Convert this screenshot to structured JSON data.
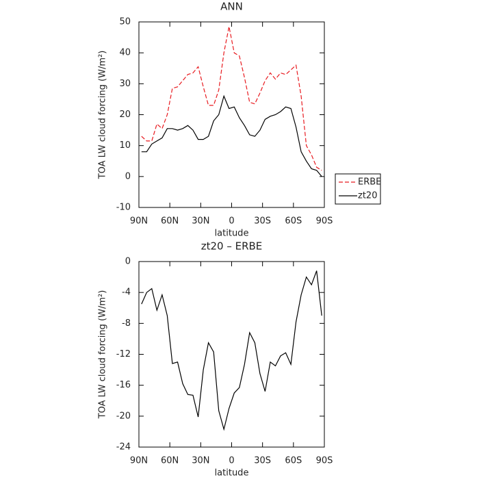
{
  "chart_data": [
    {
      "type": "line",
      "title": "ANN",
      "xlabel": "latitude",
      "ylabel": "TOA LW cloud forcing (W/m²)",
      "x": [
        87.5,
        82.5,
        77.5,
        72.5,
        67.5,
        62.5,
        57.5,
        52.5,
        47.5,
        42.5,
        37.5,
        32.5,
        27.5,
        22.5,
        17.5,
        12.5,
        7.5,
        2.5,
        -2.5,
        -7.5,
        -12.5,
        -17.5,
        -22.5,
        -27.5,
        -32.5,
        -37.5,
        -42.5,
        -47.5,
        -52.5,
        -57.5,
        -62.5,
        -67.5,
        -72.5,
        -77.5,
        -82.5,
        -87.5
      ],
      "series": [
        {
          "name": "ERBE",
          "color": "#e8191e",
          "dashed": true,
          "values": [
            13,
            11.5,
            11.5,
            17,
            15.5,
            20,
            28.5,
            29,
            31,
            33,
            33.5,
            35.5,
            29,
            23,
            23,
            28,
            40,
            48.5,
            40,
            39,
            32,
            24,
            23.5,
            27,
            31,
            33.5,
            31.5,
            33.5,
            33,
            34.5,
            36,
            26,
            10,
            7,
            3,
            2
          ]
        },
        {
          "name": "zt20",
          "color": "#000000",
          "dashed": false,
          "values": [
            8,
            8,
            10.5,
            11.5,
            12.5,
            15.5,
            15.5,
            15,
            15.5,
            16.5,
            15,
            12,
            12,
            13,
            18,
            20,
            26,
            22,
            22.5,
            19,
            16.5,
            13.5,
            13,
            15,
            18.5,
            19.5,
            20,
            21,
            22.5,
            22,
            16,
            8,
            5,
            2.5,
            2,
            0
          ]
        }
      ],
      "xlim": [
        90,
        -90
      ],
      "xticks": [
        {
          "value": 90,
          "label": "90N"
        },
        {
          "value": 60,
          "label": "60N"
        },
        {
          "value": 30,
          "label": "30N"
        },
        0,
        {
          "value": -30,
          "label": "30S"
        },
        {
          "value": -60,
          "label": "60S"
        },
        {
          "value": -90,
          "label": "90S"
        }
      ],
      "ylim": [
        -10,
        50
      ],
      "yticks": [
        -10,
        0,
        10,
        20,
        30,
        40,
        50
      ],
      "legend": "right"
    },
    {
      "type": "line",
      "title": "zt20 – ERBE",
      "xlabel": "latitude",
      "ylabel": "TOA LW cloud forcing (W/m²)",
      "x": [
        87.5,
        82.5,
        77.5,
        72.5,
        67.5,
        62.5,
        57.5,
        52.5,
        47.5,
        42.5,
        37.5,
        32.5,
        27.5,
        22.5,
        17.5,
        12.5,
        7.5,
        2.5,
        -2.5,
        -7.5,
        -12.5,
        -17.5,
        -22.5,
        -27.5,
        -32.5,
        -37.5,
        -42.5,
        -47.5,
        -52.5,
        -57.5,
        -62.5,
        -67.5,
        -72.5,
        -77.5,
        -82.5,
        -87.5
      ],
      "values": [
        -5.5,
        -4,
        -3.5,
        -6.3,
        -4.3,
        -7,
        -13.2,
        -13,
        -15.8,
        -17.2,
        -17.3,
        -20.1,
        -14,
        -10.5,
        -11.7,
        -19.3,
        -21.7,
        -19,
        -17,
        -16.3,
        -13.3,
        -9.2,
        -10.5,
        -14.5,
        -16.8,
        -13,
        -13.5,
        -12.2,
        -11.8,
        -13.3,
        -7.8,
        -4.3,
        -2,
        -3,
        -1.2,
        -7
      ],
      "color": "#000000",
      "xlim": [
        90,
        -90
      ],
      "xticks": [
        {
          "value": 90,
          "label": "90N"
        },
        {
          "value": 60,
          "label": "60N"
        },
        {
          "value": 30,
          "label": "30N"
        },
        0,
        {
          "value": -30,
          "label": "30S"
        },
        {
          "value": -60,
          "label": "60S"
        },
        {
          "value": -90,
          "label": "90S"
        }
      ],
      "ylim": [
        -24,
        0
      ],
      "yticks": [
        -24,
        -20,
        -16,
        -12,
        -8,
        -4,
        0
      ]
    }
  ]
}
